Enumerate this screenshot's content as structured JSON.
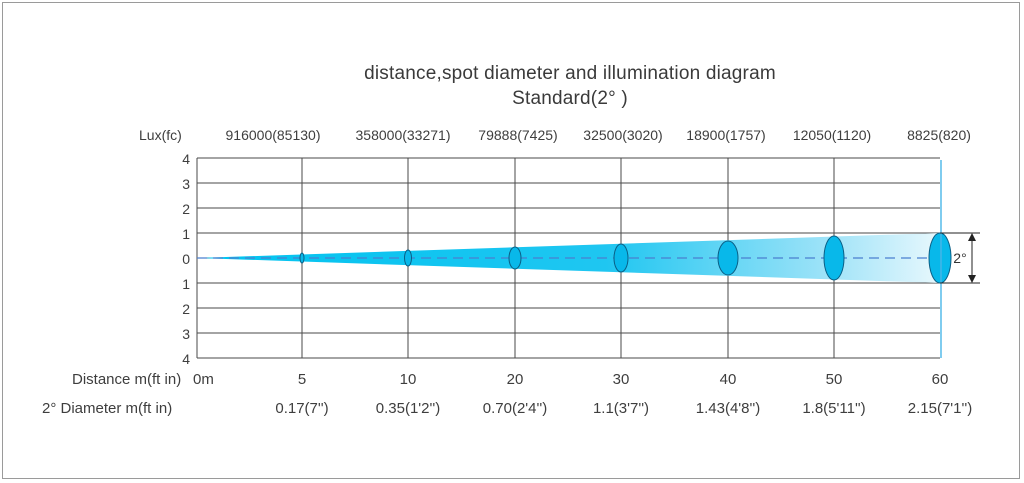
{
  "title": "distance,spot diameter and illumination diagram",
  "subtitle": "Standard(2°  )",
  "lux_label": "Lux(fc)",
  "lux_values": [
    "916000(85130)",
    "358000(33271)",
    "79888(7425)",
    "32500(3020)",
    "18900(1757)",
    "12050(1120)",
    "8825(820)"
  ],
  "y_ticks": [
    "4",
    "3",
    "2",
    "1",
    "0",
    "1",
    "2",
    "3",
    "4"
  ],
  "distance_label": "Distance m(ft in)",
  "distance_values": [
    "0m",
    "5",
    "10",
    "20",
    "30",
    "40",
    "50",
    "60"
  ],
  "diameter_label": "2° Diameter m(ft in)",
  "diameter_values": [
    "0.17(7'')",
    "0.35(1'2'')",
    "0.70(2'4'')",
    "1.1(3'7'')",
    "1.43(4'8'')",
    "1.8(5'11'')",
    "2.15(7'1'')"
  ],
  "angle_label": "2°",
  "colors": {
    "beam": "#00c3f0",
    "ellipse": "#08b8ea",
    "grid": "#4a4a4a",
    "center_line": "#4a7fd0",
    "end_line": "#49b6e8"
  },
  "chart_data": {
    "type": "beam-diagram",
    "title": "distance,spot diameter and illumination diagram",
    "subtitle": "Standard(2°  )",
    "beam_angle_deg": 2,
    "y_ticks": [
      4,
      3,
      2,
      1,
      0,
      1,
      2,
      3,
      4
    ],
    "points": [
      {
        "distance": "5",
        "lux_fc": "916000(85130)",
        "diameter": "0.17(7'')"
      },
      {
        "distance": "10",
        "lux_fc": "358000(33271)",
        "diameter": "0.35(1'2'')"
      },
      {
        "distance": "20",
        "lux_fc": "79888(7425)",
        "diameter": "0.70(2'4'')"
      },
      {
        "distance": "30",
        "lux_fc": "32500(3020)",
        "diameter": "1.1(3'7'')"
      },
      {
        "distance": "40",
        "lux_fc": "18900(1757)",
        "diameter": "1.43(4'8'')"
      },
      {
        "distance": "50",
        "lux_fc": "12050(1120)",
        "diameter": "1.8(5'11'')"
      },
      {
        "distance": "60",
        "lux_fc": "8825(820)",
        "diameter": "2.15(7'1'')"
      }
    ]
  }
}
